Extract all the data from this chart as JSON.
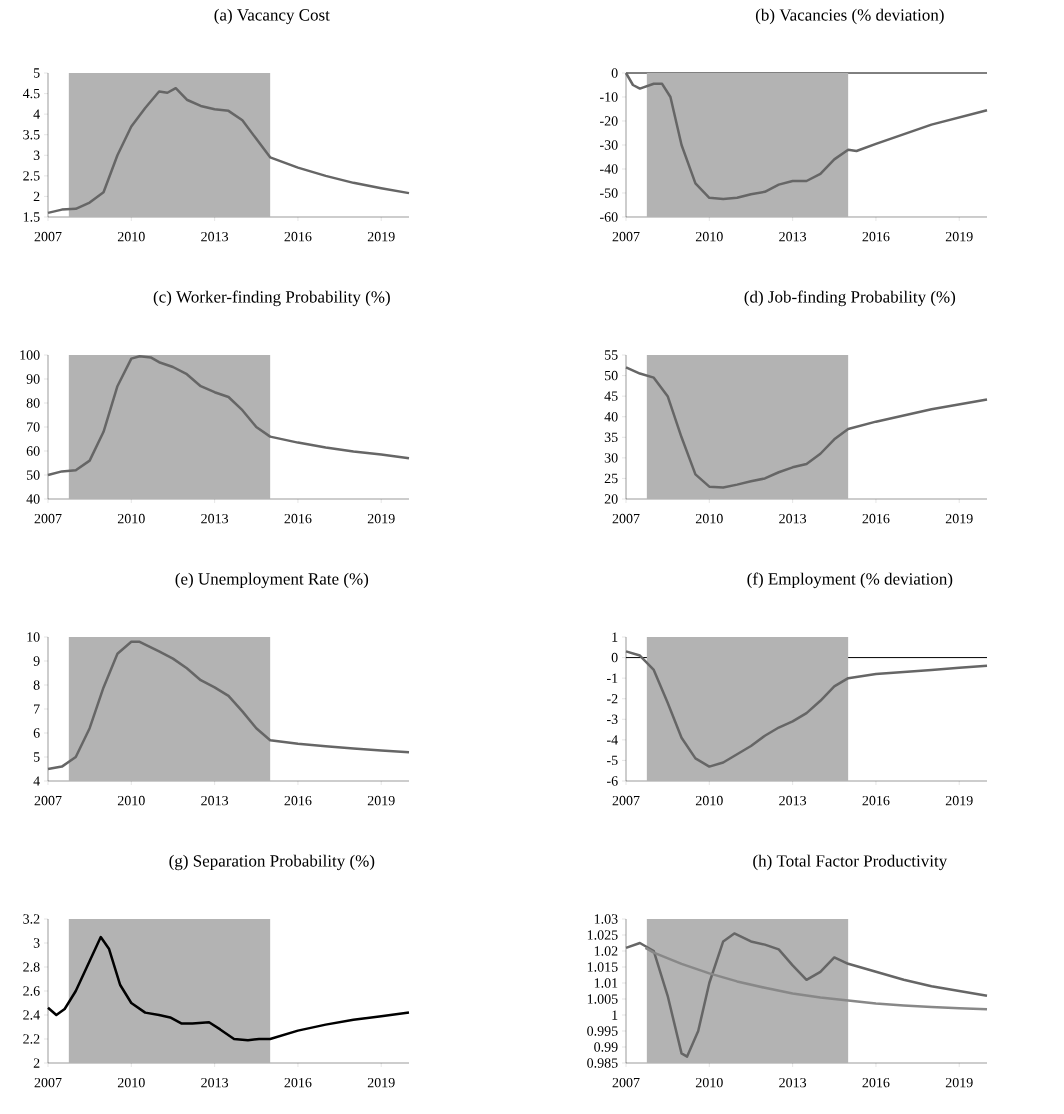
{
  "chart_data": [
    {
      "type": "line",
      "title": "(a) Vacancy Cost",
      "x": [
        2007,
        2007.5,
        2008,
        2008.5,
        2009,
        2009.5,
        2010,
        2010.5,
        2011,
        2011.3,
        2011.6,
        2012,
        2012.5,
        2013,
        2013.5,
        2014,
        2014.5,
        2015,
        2016,
        2017,
        2018,
        2019,
        2020
      ],
      "xlim": [
        2007,
        2020
      ],
      "xticks": [
        2007,
        2010,
        2013,
        2016,
        2019
      ],
      "ylim": [
        1.5,
        5
      ],
      "yticks": [
        1.5,
        2,
        2.5,
        3,
        3.5,
        4,
        4.5,
        5
      ],
      "bands": [
        {
          "axis": "x",
          "from": 2007.75,
          "to": 2015,
          "color": "#b3b3b3"
        }
      ],
      "series": [
        {
          "color": "#666666",
          "values": [
            1.6,
            1.68,
            1.7,
            1.85,
            2.1,
            3.0,
            3.7,
            4.15,
            4.55,
            4.52,
            4.63,
            4.35,
            4.2,
            4.12,
            4.08,
            3.85,
            3.4,
            2.95,
            2.7,
            2.5,
            2.33,
            2.2,
            2.08
          ]
        }
      ]
    },
    {
      "type": "line",
      "title": "(b) Vacancies (% deviation)",
      "x": [
        2007,
        2007.25,
        2007.5,
        2008,
        2008.3,
        2008.6,
        2009,
        2009.5,
        2010,
        2010.5,
        2011,
        2011.5,
        2012,
        2012.5,
        2013,
        2013.5,
        2014,
        2014.5,
        2015,
        2015.3,
        2016,
        2017,
        2018,
        2019,
        2020
      ],
      "xlim": [
        2007,
        2020
      ],
      "xticks": [
        2007,
        2010,
        2013,
        2016,
        2019
      ],
      "ylim": [
        -60,
        0
      ],
      "yticks": [
        -60,
        -50,
        -40,
        -30,
        -20,
        -10,
        0
      ],
      "ref_lines": [
        {
          "axis": "y",
          "value": 0,
          "color": "#000000"
        }
      ],
      "bands": [
        {
          "axis": "x",
          "from": 2007.75,
          "to": 2015,
          "color": "#b3b3b3"
        }
      ],
      "series": [
        {
          "color": "#666666",
          "values": [
            0,
            -5,
            -6.5,
            -4.5,
            -4.5,
            -10,
            -30,
            -46,
            -52,
            -52.5,
            -52,
            -50.5,
            -49.5,
            -46.5,
            -45,
            -45,
            -42,
            -36,
            -32,
            -32.5,
            -29.5,
            -25.5,
            -21.5,
            -18.5,
            -15.5
          ]
        }
      ]
    },
    {
      "type": "line",
      "title": "(c) Worker-finding Probability (%)",
      "x": [
        2007,
        2007.5,
        2008,
        2008.5,
        2009,
        2009.5,
        2010,
        2010.3,
        2010.7,
        2011,
        2011.5,
        2012,
        2012.5,
        2013,
        2013.5,
        2014,
        2014.5,
        2015,
        2016,
        2017,
        2018,
        2019,
        2020
      ],
      "xlim": [
        2007,
        2020
      ],
      "xticks": [
        2007,
        2010,
        2013,
        2016,
        2019
      ],
      "ylim": [
        40,
        100
      ],
      "yticks": [
        40,
        50,
        60,
        70,
        80,
        90,
        100
      ],
      "bands": [
        {
          "axis": "x",
          "from": 2007.75,
          "to": 2015,
          "color": "#b3b3b3"
        }
      ],
      "series": [
        {
          "color": "#666666",
          "values": [
            50,
            51.5,
            52,
            56,
            68,
            87,
            98.5,
            99.5,
            99,
            97,
            95,
            92,
            87,
            84.5,
            82.5,
            77,
            70,
            66,
            63.5,
            61.5,
            59.8,
            58.5,
            57
          ]
        }
      ]
    },
    {
      "type": "line",
      "title": "(d) Job-finding Probability (%)",
      "x": [
        2007,
        2007.5,
        2008,
        2008.5,
        2009,
        2009.5,
        2010,
        2010.5,
        2011,
        2011.5,
        2012,
        2012.5,
        2013,
        2013.5,
        2014,
        2014.5,
        2015,
        2016,
        2017,
        2018,
        2019,
        2020
      ],
      "xlim": [
        2007,
        2020
      ],
      "xticks": [
        2007,
        2010,
        2013,
        2016,
        2019
      ],
      "ylim": [
        20,
        55
      ],
      "yticks": [
        20,
        25,
        30,
        35,
        40,
        45,
        50,
        55
      ],
      "bands": [
        {
          "axis": "x",
          "from": 2007.75,
          "to": 2015,
          "color": "#b3b3b3"
        }
      ],
      "series": [
        {
          "color": "#666666",
          "values": [
            52,
            50.5,
            49.5,
            45,
            35,
            26,
            23,
            22.8,
            23.5,
            24.3,
            25,
            26.5,
            27.7,
            28.5,
            31,
            34.5,
            37,
            38.8,
            40.3,
            41.8,
            43,
            44.2
          ]
        }
      ]
    },
    {
      "type": "line",
      "title": "(e) Unemployment Rate (%)",
      "x": [
        2007,
        2007.5,
        2008,
        2008.5,
        2009,
        2009.5,
        2010,
        2010.3,
        2011,
        2011.5,
        2012,
        2012.5,
        2013,
        2013.5,
        2014,
        2014.5,
        2015,
        2016,
        2017,
        2018,
        2019,
        2020
      ],
      "xlim": [
        2007,
        2020
      ],
      "xticks": [
        2007,
        2010,
        2013,
        2016,
        2019
      ],
      "ylim": [
        4,
        10
      ],
      "yticks": [
        4,
        5,
        6,
        7,
        8,
        9,
        10
      ],
      "bands": [
        {
          "axis": "x",
          "from": 2007.75,
          "to": 2015,
          "color": "#b3b3b3"
        }
      ],
      "series": [
        {
          "color": "#666666",
          "values": [
            4.5,
            4.6,
            5.0,
            6.2,
            7.9,
            9.3,
            9.8,
            9.8,
            9.4,
            9.1,
            8.7,
            8.2,
            7.9,
            7.55,
            6.9,
            6.2,
            5.7,
            5.55,
            5.45,
            5.35,
            5.27,
            5.2
          ]
        }
      ]
    },
    {
      "type": "line",
      "title": "(f) Employment (% deviation)",
      "x": [
        2007,
        2007.5,
        2008,
        2008.5,
        2009,
        2009.5,
        2010,
        2010.5,
        2011,
        2011.5,
        2012,
        2012.5,
        2013,
        2013.5,
        2014,
        2014.5,
        2015,
        2016,
        2017,
        2018,
        2019,
        2020
      ],
      "xlim": [
        2007,
        2020
      ],
      "xticks": [
        2007,
        2010,
        2013,
        2016,
        2019
      ],
      "ylim": [
        -6,
        1
      ],
      "yticks": [
        -6,
        -5,
        -4,
        -3,
        -2,
        -1,
        0,
        1
      ],
      "ref_lines": [
        {
          "axis": "y",
          "value": 0,
          "color": "#000000"
        }
      ],
      "bands": [
        {
          "axis": "x",
          "from": 2007.75,
          "to": 2015,
          "color": "#b3b3b3"
        }
      ],
      "series": [
        {
          "color": "#666666",
          "values": [
            0.3,
            0.1,
            -0.6,
            -2.2,
            -3.9,
            -4.9,
            -5.3,
            -5.1,
            -4.7,
            -4.3,
            -3.8,
            -3.4,
            -3.1,
            -2.7,
            -2.1,
            -1.4,
            -1.0,
            -0.8,
            -0.7,
            -0.6,
            -0.5,
            -0.4
          ]
        }
      ]
    },
    {
      "type": "line",
      "title": "(g) Separation Probability (%)",
      "x": [
        2007,
        2007.3,
        2007.6,
        2008,
        2008.5,
        2008.9,
        2009.2,
        2009.6,
        2010,
        2010.5,
        2011,
        2011.4,
        2011.8,
        2012.2,
        2012.8,
        2013.2,
        2013.7,
        2014.2,
        2014.6,
        2015,
        2016,
        2017,
        2018,
        2019,
        2020
      ],
      "xlim": [
        2007,
        2020
      ],
      "xticks": [
        2007,
        2010,
        2013,
        2016,
        2019
      ],
      "ylim": [
        2,
        3.2
      ],
      "yticks": [
        2,
        2.2,
        2.4,
        2.6,
        2.8,
        3,
        3.2
      ],
      "bands": [
        {
          "axis": "x",
          "from": 2007.75,
          "to": 2015,
          "color": "#b3b3b3"
        }
      ],
      "series": [
        {
          "color": "#000000",
          "values": [
            2.46,
            2.4,
            2.45,
            2.6,
            2.85,
            3.05,
            2.95,
            2.65,
            2.5,
            2.42,
            2.4,
            2.38,
            2.33,
            2.33,
            2.34,
            2.28,
            2.2,
            2.19,
            2.2,
            2.2,
            2.27,
            2.32,
            2.36,
            2.39,
            2.42
          ]
        }
      ]
    },
    {
      "type": "line",
      "title": "(h) Total Factor Productivity",
      "x": [
        2007,
        2007.5,
        2008,
        2008.5,
        2009,
        2009.2,
        2009.6,
        2010,
        2010.5,
        2010.9,
        2011.5,
        2012,
        2012.5,
        2013,
        2013.5,
        2014,
        2014.5,
        2015,
        2016,
        2017,
        2018,
        2019,
        2020
      ],
      "xlim": [
        2007,
        2020
      ],
      "xticks": [
        2007,
        2010,
        2013,
        2016,
        2019
      ],
      "ylim": [
        0.985,
        1.03
      ],
      "yticks": [
        0.985,
        0.99,
        0.995,
        1,
        1.005,
        1.01,
        1.015,
        1.02,
        1.025,
        1.03
      ],
      "bands": [
        {
          "axis": "x",
          "from": 2007.75,
          "to": 2015,
          "color": "#b3b3b3"
        }
      ],
      "series": [
        {
          "color": "#666666",
          "values": [
            1.021,
            1.0225,
            1.02,
            1.006,
            0.988,
            0.987,
            0.995,
            1.01,
            1.023,
            1.0255,
            1.023,
            1.022,
            1.0205,
            1.0155,
            1.011,
            1.0135,
            1.018,
            1.016,
            1.0135,
            1.011,
            1.009,
            1.0075,
            1.006
          ]
        },
        {
          "color": "#888888",
          "x": [
            2007.7,
            2008,
            2009,
            2010,
            2011,
            2012,
            2013,
            2014,
            2015,
            2016,
            2017,
            2018,
            2019,
            2020
          ],
          "values": [
            1.021,
            1.0195,
            1.016,
            1.013,
            1.0105,
            1.0085,
            1.0067,
            1.0055,
            1.0045,
            1.0036,
            1.003,
            1.0025,
            1.0021,
            1.0018
          ]
        }
      ]
    }
  ]
}
